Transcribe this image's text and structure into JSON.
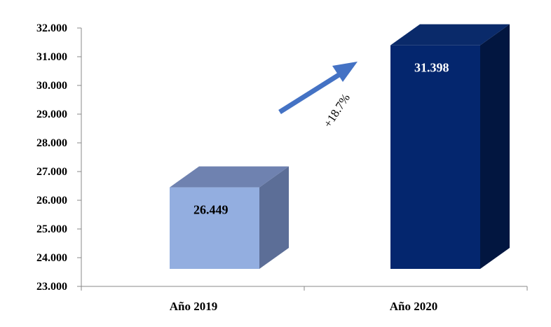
{
  "chart_data": {
    "type": "bar",
    "categories": [
      "Año 2019",
      "Año 2020"
    ],
    "values": [
      26449,
      31398
    ],
    "data_labels": [
      "26.449",
      "31.398"
    ],
    "yticks": [
      "23.000",
      "24.000",
      "25.000",
      "26.000",
      "27.000",
      "28.000",
      "29.000",
      "30.000",
      "31.000",
      "32.000"
    ],
    "ylim": [
      23000,
      32000
    ],
    "bar_style": "3d",
    "grid": false,
    "legend": "none",
    "annotation": "+18.7%",
    "colors": {
      "bar_2019_front": "#93AEE0",
      "bar_2019_side": "#5C6E97",
      "bar_2019_top": "#6F82B0",
      "bar_2020_front": "#04266E",
      "bar_2020_side": "#021640",
      "bar_2020_top": "#0A2A6A",
      "label_2019": "#000000",
      "label_2020": "#ffffff",
      "arrow": "#4472C4"
    }
  }
}
